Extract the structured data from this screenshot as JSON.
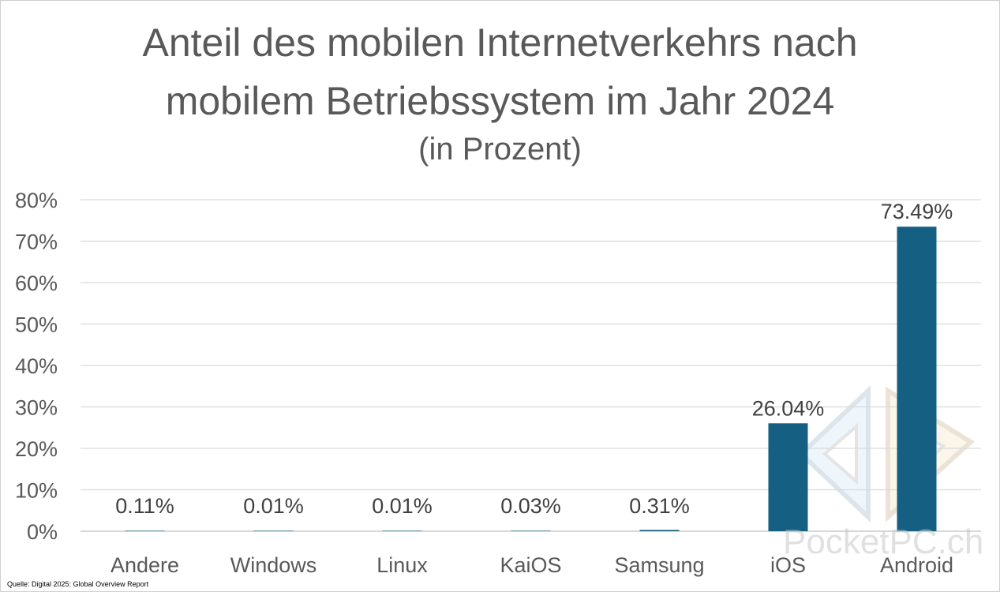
{
  "chart_data": {
    "type": "bar",
    "title_line1": "Anteil des mobilen Internetverkehrs nach",
    "title_line2": "mobilem Betriebssystem im Jahr 2024",
    "subtitle": "(in Prozent)",
    "categories": [
      "Andere",
      "Windows",
      "Linux",
      "KaiOS",
      "Samsung",
      "iOS",
      "Android"
    ],
    "values": [
      0.11,
      0.01,
      0.01,
      0.03,
      0.31,
      26.04,
      73.49
    ],
    "data_labels": [
      "0.11%",
      "0.01%",
      "0.01%",
      "0.03%",
      "0.31%",
      "26.04%",
      "73.49%"
    ],
    "y_ticks": [
      0,
      10,
      20,
      30,
      40,
      50,
      60,
      70,
      80
    ],
    "y_tick_labels": [
      "0%",
      "10%",
      "20%",
      "30%",
      "40%",
      "50%",
      "60%",
      "70%",
      "80%"
    ],
    "ylim": [
      0,
      80
    ],
    "xlabel": "",
    "ylabel": "",
    "grid": true,
    "bar_color": "#156082",
    "gridline_color": "#d9d9d9",
    "text_color": "#404040"
  },
  "source": "Quelle: Digital 2025: Global Overview Report",
  "watermark": "PocketPC.ch"
}
